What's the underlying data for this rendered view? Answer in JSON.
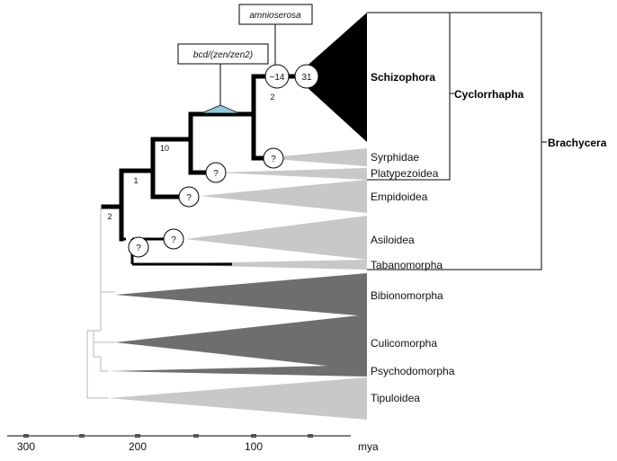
{
  "callouts": {
    "amnioserosa": "amnioserosa",
    "bcd": "bcd/(zen/zen2)"
  },
  "taxa": {
    "schizophora": "Schizophora",
    "syrphidae": "Syrphidae",
    "platypezoidea": "Platypezoidea",
    "empidoidea": "Empidoidea",
    "asiloidea": "Asiloidea",
    "tabanomorpha": "Tabanomorpha",
    "bibionomorpha": "Bibionomorpha",
    "culicomorpha": "Culicomorpha",
    "psychodomorpha": "Psychodomorpha",
    "tipuloidea": "Tipuloidea"
  },
  "groups": {
    "cyclorrhapha": "Cyclorrhapha",
    "brachycera": "Brachycera"
  },
  "nodes": {
    "n14": "~14",
    "n31": "31",
    "q1": "?",
    "q2": "?",
    "q3": "?",
    "q4": "?",
    "q5": "?"
  },
  "branch_labels": {
    "b2_small": "2",
    "b10": "10",
    "b1": "1",
    "b2_root": "2"
  },
  "axis": {
    "unit": "mya",
    "ticks": [
      "300",
      "200",
      "100"
    ]
  },
  "colors": {
    "black": "#000000",
    "dark_gray": "#6e6e6e",
    "light_gray": "#c8c8c8",
    "thin_branch": "#b4b4b4",
    "callout_triangle": "#8fc9d6"
  }
}
